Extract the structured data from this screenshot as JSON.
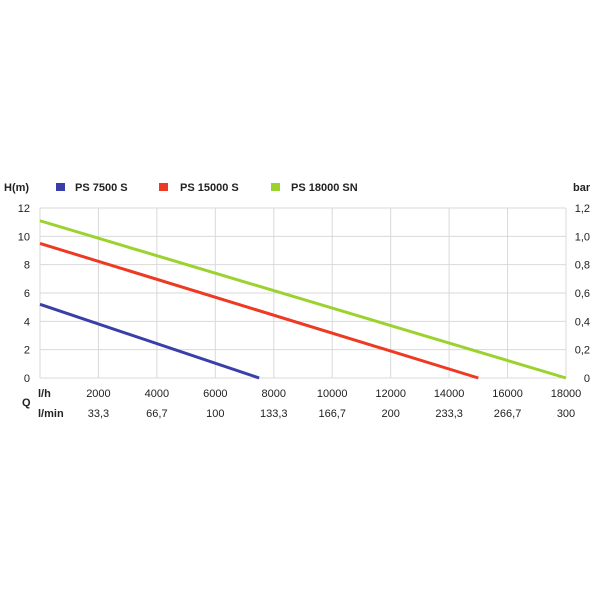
{
  "chart_data": {
    "type": "line",
    "legend_position": "top",
    "grid": true,
    "left_axis": {
      "unit_label": "H(m)",
      "ticks": [
        "0",
        "2",
        "4",
        "6",
        "8",
        "10",
        "12"
      ],
      "range": [
        0,
        12
      ]
    },
    "right_axis": {
      "unit_label": "bar",
      "ticks": [
        "0",
        "0,2",
        "0,4",
        "0,6",
        "0,8",
        "1,0",
        "1,2"
      ],
      "range": [
        0,
        1.2
      ]
    },
    "x_axis": {
      "range": [
        0,
        18000
      ],
      "q_label": "Q",
      "lh_unit": "l/h",
      "lh_ticks": [
        "2000",
        "4000",
        "6000",
        "8000",
        "10000",
        "12000",
        "14000",
        "16000",
        "18000"
      ],
      "lmin_unit": "l/min",
      "lmin_ticks": [
        "33,3",
        "66,7",
        "100",
        "133,3",
        "166,7",
        "200",
        "233,3",
        "266,7",
        "300"
      ]
    },
    "series": [
      {
        "name": "PS 7500 S",
        "color": "#3a3fa8",
        "points": [
          [
            0,
            5.2
          ],
          [
            7500,
            0
          ]
        ]
      },
      {
        "name": "PS 15000 S",
        "color": "#ee3a23",
        "points": [
          [
            0,
            9.5
          ],
          [
            15000,
            0
          ]
        ]
      },
      {
        "name": "PS 18000 SN",
        "color": "#9bd22e",
        "points": [
          [
            0,
            11.1
          ],
          [
            18000,
            0
          ]
        ]
      }
    ]
  }
}
